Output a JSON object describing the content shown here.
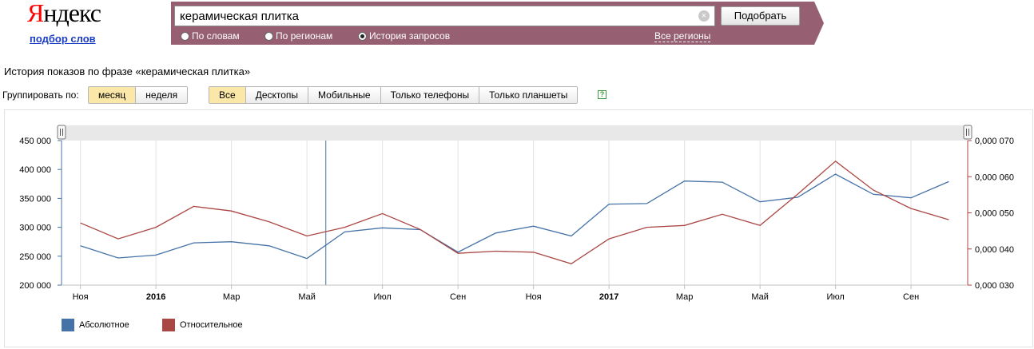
{
  "header": {
    "logo": {
      "first_letter": "Я",
      "rest": "ндекс"
    },
    "logo_subtitle": "подбор слов",
    "search": {
      "value": "керамическая плитка",
      "clear_icon": "×"
    },
    "submit_label": "Подобрать",
    "modes": [
      {
        "label": "По словам",
        "selected": false
      },
      {
        "label": "По регионам",
        "selected": false
      },
      {
        "label": "История запросов",
        "selected": true
      }
    ],
    "regions_link": "Все регионы",
    "accent_color": "#965f72"
  },
  "history_title": "История показов по фразе «керамическая плитка»",
  "grouping": {
    "label": "Группировать по:",
    "options": [
      {
        "label": "месяц",
        "active": true
      },
      {
        "label": "неделя",
        "active": false
      }
    ]
  },
  "devices": {
    "options": [
      {
        "label": "Все",
        "active": true
      },
      {
        "label": "Десктопы",
        "active": false
      },
      {
        "label": "Мобильные",
        "active": false
      },
      {
        "label": "Только телефоны",
        "active": false
      },
      {
        "label": "Только планшеты",
        "active": false
      }
    ],
    "help_icon": "?"
  },
  "chart_data": {
    "type": "line",
    "x": [
      "2015-11",
      "2015-12",
      "2016-01",
      "2016-02",
      "2016-03",
      "2016-04",
      "2016-05",
      "2016-06",
      "2016-07",
      "2016-08",
      "2016-09",
      "2016-10",
      "2016-11",
      "2016-12",
      "2017-01",
      "2017-02",
      "2017-03",
      "2017-04",
      "2017-05",
      "2017-06",
      "2017-07",
      "2017-08",
      "2017-09",
      "2017-10"
    ],
    "x_tick_labels": [
      {
        "month": "2015-11",
        "label": "Ноя",
        "bold": false
      },
      {
        "month": "2016-01",
        "label": "2016",
        "bold": true
      },
      {
        "month": "2016-03",
        "label": "Мар",
        "bold": false
      },
      {
        "month": "2016-05",
        "label": "Май",
        "bold": false
      },
      {
        "month": "2016-07",
        "label": "Июл",
        "bold": false
      },
      {
        "month": "2016-09",
        "label": "Сен",
        "bold": false
      },
      {
        "month": "2016-11",
        "label": "Ноя",
        "bold": false
      },
      {
        "month": "2017-01",
        "label": "2017",
        "bold": true
      },
      {
        "month": "2017-03",
        "label": "Мар",
        "bold": false
      },
      {
        "month": "2017-05",
        "label": "Май",
        "bold": false
      },
      {
        "month": "2017-07",
        "label": "Июл",
        "bold": false
      },
      {
        "month": "2017-09",
        "label": "Сен",
        "bold": false
      }
    ],
    "series": [
      {
        "name": "Абсолютное",
        "axis": "left",
        "color": "#4572a7",
        "values": [
          268000,
          247000,
          252000,
          273000,
          275000,
          268000,
          246000,
          292000,
          299000,
          296000,
          257000,
          290000,
          302000,
          285000,
          340000,
          341000,
          380000,
          378000,
          344000,
          352000,
          392000,
          357000,
          351000,
          379000
        ]
      },
      {
        "name": "Относительное",
        "axis": "right",
        "color": "#aa4643",
        "values": [
          0.0472,
          0.0428,
          0.046,
          0.0518,
          0.0505,
          0.0475,
          0.0436,
          0.046,
          0.0498,
          0.0454,
          0.0388,
          0.0394,
          0.0391,
          0.0359,
          0.0428,
          0.046,
          0.0465,
          0.0496,
          0.0465,
          0.0552,
          0.0643,
          0.0563,
          0.0512,
          0.0481
        ]
      }
    ],
    "y_left": {
      "min": 200000,
      "max": 450000,
      "ticks": [
        "200 000",
        "250 000",
        "300 000",
        "350 000",
        "400 000",
        "450 000"
      ]
    },
    "y_right": {
      "min": 0.03,
      "max": 0.07,
      "ticks": [
        "0,000 030",
        "0,000 040",
        "0,000 050",
        "0,000 060",
        "0,000 070"
      ]
    },
    "highlight_month": "2016-06",
    "range_handle_icon": "grip-handle",
    "legend_position": "bottom-left",
    "grid": true
  }
}
